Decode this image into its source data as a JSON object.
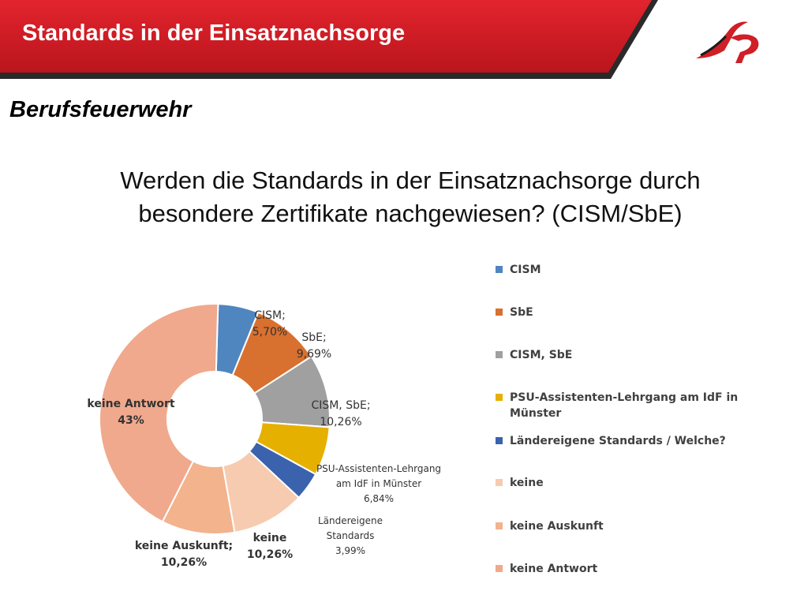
{
  "slide": {
    "title": "Standards in der Einsatznachsorge",
    "subtitle": "Berufsfeuerwehr",
    "question_line1": "Werden die Standards in der Einsatznachsorge durch",
    "question_line2": "besondere Zertifikate nachgewiesen? (CISM/SbE)",
    "logo_icon": "fire-brigade-logo-icon",
    "accent_color": "#d4202a"
  },
  "chart_data": {
    "type": "pie",
    "style": "donut",
    "title": "",
    "legend_position": "right",
    "slices": [
      {
        "name": "CISM",
        "value": 5.7,
        "label_lines": [
          "CISM;",
          "5,70%"
        ],
        "color": "#4f86c0",
        "bold": false
      },
      {
        "name": "SbE",
        "value": 9.69,
        "label_lines": [
          "SbE;",
          "9,69%"
        ],
        "color": "#d8702f",
        "bold": false
      },
      {
        "name": "CISM, SbE",
        "value": 10.26,
        "label_lines": [
          "CISM, SbE;",
          "10,26%"
        ],
        "color": "#a0a0a0",
        "bold": false
      },
      {
        "name": "PSU-Assistenten-Lehrgang am IdF in Münster",
        "value": 6.84,
        "label_lines": [
          "PSU-Assistenten-Lehrgang",
          "am IdF in Münster",
          "6,84%"
        ],
        "color": "#e6b000",
        "bold": false
      },
      {
        "name": "Ländereigene Standards / Welche?",
        "value": 3.99,
        "label_lines": [
          "Ländereigene",
          "Standards",
          "3,99%"
        ],
        "color": "#3a62ad",
        "bold": false
      },
      {
        "name": "keine",
        "value": 10.26,
        "label_lines": [
          "keine",
          "10,26%"
        ],
        "color": "#f7cbb0",
        "bold": true
      },
      {
        "name": "keine Auskunft",
        "value": 10.26,
        "label_lines": [
          "keine Auskunft;",
          "10,26%"
        ],
        "color": "#f2b38d",
        "bold": true
      },
      {
        "name": "keine Antwort",
        "value": 43,
        "label_lines": [
          "keine Antwort",
          "43%"
        ],
        "color": "#f0a98c",
        "bold": true
      }
    ],
    "legend": [
      {
        "label": "CISM",
        "color": "#4f86c0"
      },
      {
        "label": "SbE",
        "color": "#d8702f"
      },
      {
        "label": "CISM, SbE",
        "color": "#a0a0a0"
      },
      {
        "label": "PSU-Assistenten-Lehrgang am IdF in Münster",
        "color": "#e6b000"
      },
      {
        "label": "Ländereigene Standards / Welche?",
        "color": "#3a62ad"
      },
      {
        "label": "keine",
        "color": "#f7cbb0"
      },
      {
        "label": "keine Auskunft",
        "color": "#f2b38d"
      },
      {
        "label": "keine Antwort",
        "color": "#f0a98c"
      }
    ]
  }
}
